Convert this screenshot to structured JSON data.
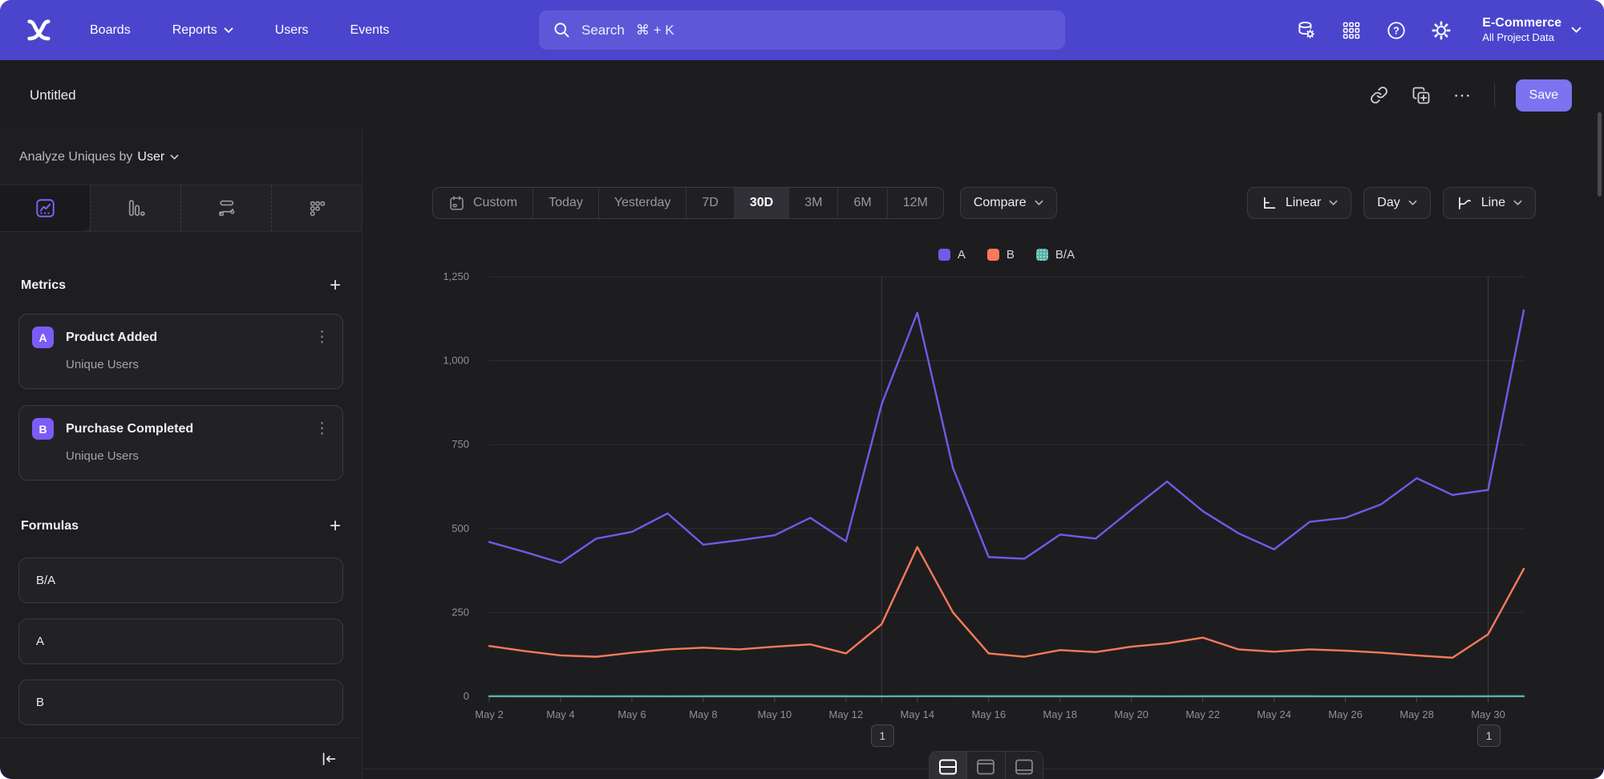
{
  "brand": {
    "nav_bg": "#4b45cd",
    "accent": "#7c5cf6",
    "save_bg": "#7c73f0"
  },
  "icons": {
    "plus": "+",
    "kebab": "⋮",
    "ellipsis": "⋯"
  },
  "nav": {
    "items": [
      {
        "label": "Boards",
        "has_caret": false
      },
      {
        "label": "Reports",
        "has_caret": true
      },
      {
        "label": "Users",
        "has_caret": false
      },
      {
        "label": "Events",
        "has_caret": false
      }
    ],
    "search": {
      "placeholder": "Search",
      "shortcut": "⌘ + K"
    },
    "right_icons": [
      "data-management-icon",
      "apps-grid-icon",
      "help-icon",
      "settings-gear-icon"
    ],
    "project": {
      "name": "E-Commerce",
      "scope": "All Project Data"
    }
  },
  "doc": {
    "title": "Untitled",
    "actions": [
      "copy-link-icon",
      "duplicate-icon",
      "more-menu-icon"
    ],
    "save_label": "Save"
  },
  "sidebar": {
    "analyze_prefix": "Analyze Uniques by",
    "analyze_value": "User",
    "tabs": [
      {
        "name": "insights",
        "selected": true
      },
      {
        "name": "funnels",
        "selected": false
      },
      {
        "name": "flows",
        "selected": false
      },
      {
        "name": "retention",
        "selected": false
      }
    ],
    "metrics_title": "Metrics",
    "metrics": [
      {
        "letter": "A",
        "event": "Product Added",
        "measure": "Unique Users"
      },
      {
        "letter": "B",
        "event": "Purchase Completed",
        "measure": "Unique Users"
      }
    ],
    "formulas_title": "Formulas",
    "formulas": [
      "B/A",
      "A",
      "B"
    ]
  },
  "controls": {
    "date_ranges": [
      "Custom",
      "Today",
      "Yesterday",
      "7D",
      "30D",
      "3M",
      "6M",
      "12M"
    ],
    "selected_range": "30D",
    "compare_label": "Compare",
    "scale_label": "Linear",
    "interval_label": "Day",
    "chart_type_label": "Line"
  },
  "chart_data": {
    "type": "line",
    "title": "",
    "xlabel": "",
    "ylabel": "",
    "grid": true,
    "legend_position": "top",
    "ylim": [
      0,
      1250
    ],
    "yticks": [
      "0",
      "250",
      "500",
      "750",
      "1,000",
      "1,250"
    ],
    "ytick_values": [
      0,
      250,
      500,
      750,
      1000,
      1250
    ],
    "tick_every": 2,
    "categories": [
      "May 2",
      "May 3",
      "May 4",
      "May 5",
      "May 6",
      "May 7",
      "May 8",
      "May 9",
      "May 10",
      "May 11",
      "May 12",
      "May 13",
      "May 14",
      "May 15",
      "May 16",
      "May 17",
      "May 18",
      "May 19",
      "May 20",
      "May 21",
      "May 22",
      "May 23",
      "May 24",
      "May 25",
      "May 26",
      "May 27",
      "May 28",
      "May 29",
      "May 30",
      "May 31"
    ],
    "series": [
      {
        "name": "A",
        "color": "#6f5be8",
        "values": [
          460,
          430,
          398,
          470,
          490,
          545,
          452,
          465,
          480,
          532,
          462,
          870,
          1143,
          680,
          415,
          410,
          482,
          470,
          556,
          640,
          552,
          486,
          438,
          520,
          532,
          572,
          650,
          600,
          615,
          1150
        ]
      },
      {
        "name": "B",
        "color": "#f87a58",
        "values": [
          150,
          135,
          122,
          118,
          130,
          140,
          145,
          140,
          148,
          155,
          128,
          215,
          445,
          250,
          128,
          118,
          138,
          132,
          148,
          158,
          175,
          140,
          133,
          140,
          136,
          130,
          122,
          115,
          185,
          380
        ]
      },
      {
        "name": "B/A",
        "color": "#55b3a5",
        "values": [
          0.33,
          0.31,
          0.31,
          0.25,
          0.27,
          0.26,
          0.32,
          0.3,
          0.31,
          0.29,
          0.28,
          0.25,
          0.39,
          0.37,
          0.31,
          0.29,
          0.29,
          0.28,
          0.27,
          0.25,
          0.32,
          0.29,
          0.3,
          0.27,
          0.26,
          0.23,
          0.19,
          0.19,
          0.3,
          0.33
        ]
      }
    ],
    "annotations": [
      {
        "day": "May 13",
        "label": "1"
      },
      {
        "day": "May 30",
        "label": "1"
      }
    ]
  },
  "footer": {
    "layout_options": [
      "split-view",
      "chart-top",
      "table-bottom"
    ],
    "selected_layout": "split-view"
  }
}
